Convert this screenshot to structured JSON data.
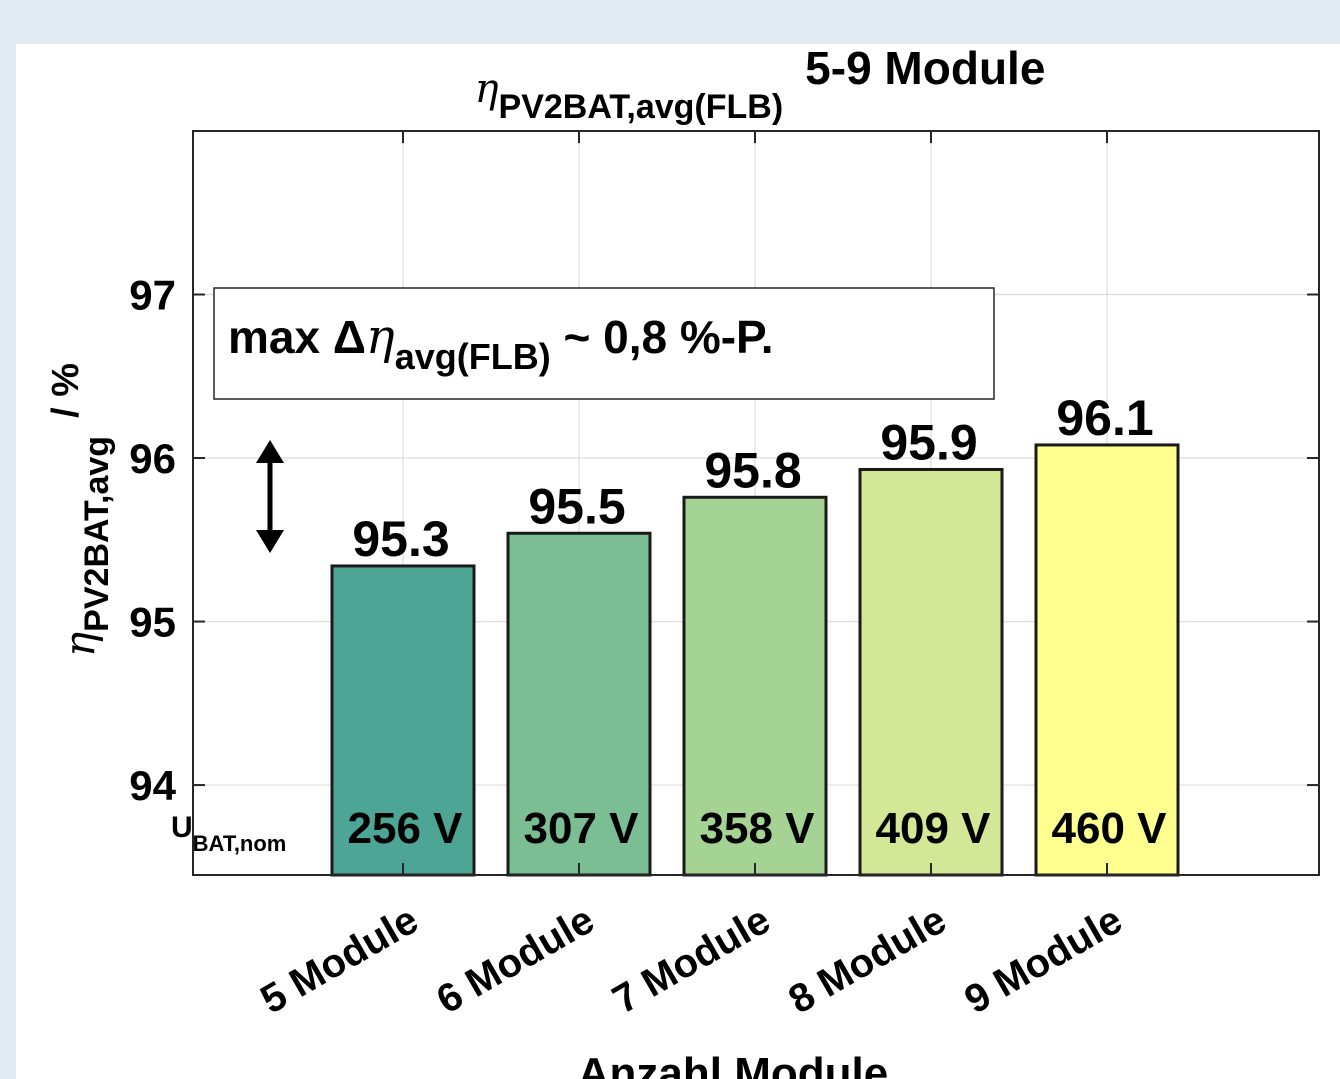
{
  "chart_data": {
    "type": "bar",
    "title_symbol": "η",
    "title_subscript": "PV2BAT,avg(FLB)",
    "title_suffix": "5-9 Module",
    "ylabel_symbol": "η",
    "ylabel_subscript": "PV2BAT,avg",
    "ylabel_unit": "/ %",
    "xlabel": "Anzahl Module",
    "categories": [
      "5 Module",
      "6 Module",
      "7 Module",
      "8 Module",
      "9 Module"
    ],
    "values": [
      95.34,
      95.54,
      95.76,
      95.93,
      96.08
    ],
    "data_labels": [
      "95.3",
      "95.5",
      "95.8",
      "95.9",
      "96.1"
    ],
    "voltage_labels": [
      "256 V",
      "307 V",
      "358 V",
      "409 V",
      "460 V"
    ],
    "voltage_row_label": "U",
    "voltage_row_subscript": "BAT,nom",
    "bar_colors": [
      "#4da695",
      "#7bbe94",
      "#a5d394",
      "#d2e897",
      "#ffff8f"
    ],
    "yticks": [
      94,
      95,
      96,
      97
    ],
    "ytick_labels": [
      "94",
      "95",
      "96",
      "97"
    ],
    "ylim": [
      93.45,
      98.0
    ],
    "grid": true,
    "annotation": {
      "prefix": "max Δ",
      "symbol": "η",
      "subscript": "avg(FLB)",
      "suffix": " ~ 0,8 %-P."
    },
    "arrow": "double-vertical"
  }
}
